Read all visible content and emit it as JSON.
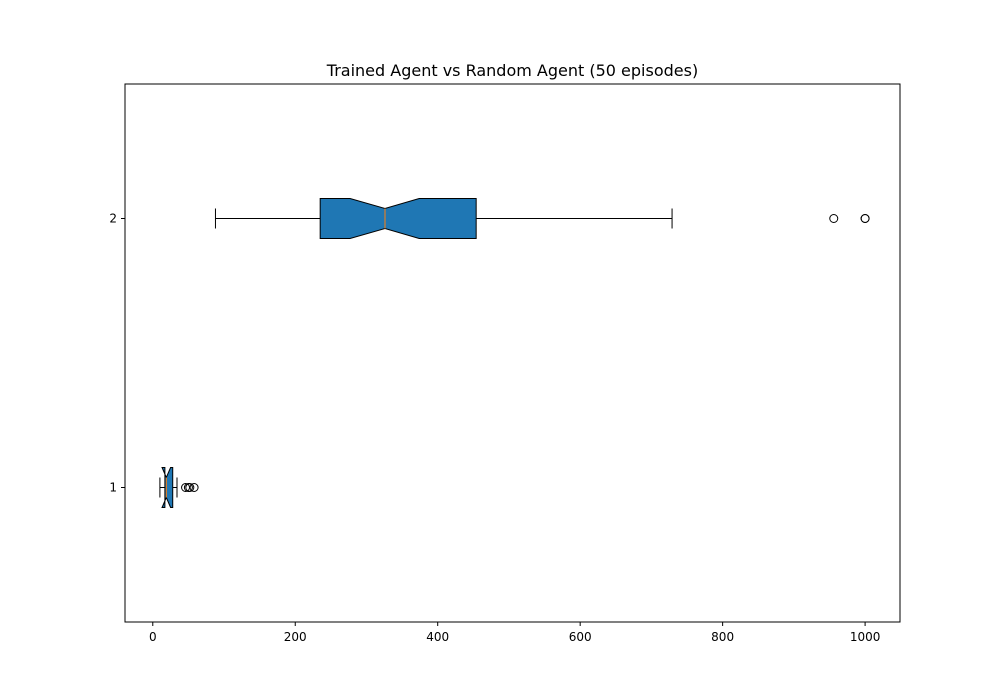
{
  "chart_data": {
    "type": "boxplot",
    "orientation": "horizontal",
    "notched": true,
    "title": "Trained Agent vs Random Agent (50 episodes)",
    "xlabel": "",
    "ylabel": "",
    "xlim": [
      -39,
      1049
    ],
    "ylim": [
      0.5,
      2.5
    ],
    "xticks": [
      0,
      200,
      400,
      600,
      800,
      1000
    ],
    "yticks": [
      1,
      2
    ],
    "grid": false,
    "box_color": "#1f77b4",
    "median_color": "#ff7f0e",
    "series": [
      {
        "position": 1,
        "whislo": 10,
        "q1": 17,
        "notch_lo": 13,
        "med": 19,
        "notch_hi": 25,
        "q3": 28,
        "whishi": 34,
        "fliers": [
          46,
          50,
          52,
          58
        ]
      },
      {
        "position": 2,
        "whislo": 88,
        "q1": 235,
        "notch_lo": 277,
        "med": 326,
        "notch_hi": 374,
        "q3": 454,
        "whishi": 729,
        "fliers": [
          956,
          1000,
          1000
        ]
      }
    ]
  }
}
